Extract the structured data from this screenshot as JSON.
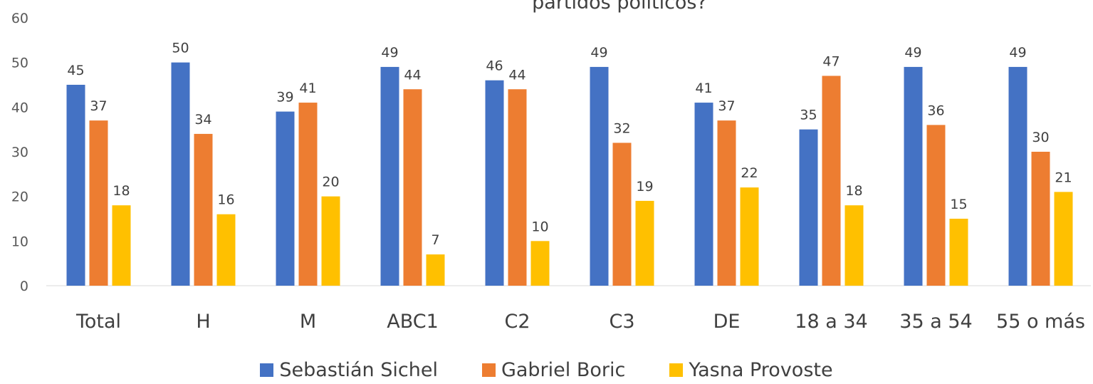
{
  "chart_data": {
    "type": "bar",
    "title": "partidos políticos?",
    "xlabel": "",
    "ylabel": "",
    "ylim": [
      0,
      60
    ],
    "yticks": [
      0,
      10,
      20,
      30,
      40,
      50,
      60
    ],
    "grid": false,
    "legend_position": "bottom",
    "categories": [
      "Total",
      "H",
      "M",
      "ABC1",
      "C2",
      "C3",
      "DE",
      "18 a 34",
      "35 a 54",
      "55 o más"
    ],
    "series": [
      {
        "name": "Sebastián Sichel",
        "color": "#4472C4",
        "values": [
          45,
          50,
          39,
          49,
          46,
          49,
          41,
          35,
          49,
          49
        ]
      },
      {
        "name": "Gabriel Boric",
        "color": "#ED7D31",
        "values": [
          37,
          34,
          41,
          44,
          44,
          32,
          37,
          47,
          36,
          30
        ]
      },
      {
        "name": "Yasna Provoste",
        "color": "#FFC000",
        "values": [
          18,
          16,
          20,
          7,
          10,
          19,
          22,
          18,
          15,
          21
        ]
      }
    ]
  }
}
